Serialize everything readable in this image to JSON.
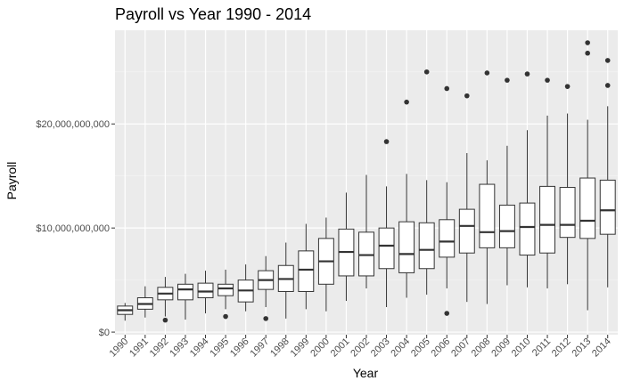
{
  "chart_data": {
    "type": "box",
    "title": "Payroll vs Year 1990 - 2014",
    "xlabel": "Year",
    "ylabel": "Payroll",
    "ylim": [
      -250000000,
      29000000000
    ],
    "y_ticks": [
      0,
      10000000000,
      20000000000
    ],
    "y_tick_labels": [
      "$0",
      "$10,000,000,000",
      "$20,000,000,000"
    ],
    "grid": true,
    "legend": "none",
    "colors": {
      "panel": "#ebebeb",
      "grid_major": "#ffffff",
      "grid_minor": "#f5f5f5",
      "box_fill": "#ffffff",
      "box_stroke": "#333333",
      "outlier": "#333333"
    },
    "categories": [
      "1990",
      "1991",
      "1992",
      "1993",
      "1994",
      "1995",
      "1996",
      "1997",
      "1998",
      "1999",
      "2000",
      "2001",
      "2002",
      "2003",
      "2004",
      "2005",
      "2006",
      "2007",
      "2008",
      "2009",
      "2010",
      "2011",
      "2012",
      "2013",
      "2014"
    ],
    "boxes": [
      {
        "min": 1100000000.0,
        "q1": 1700000000.0,
        "median": 2100000000.0,
        "q3": 2500000000.0,
        "max": 2800000000.0,
        "outliers": []
      },
      {
        "min": 1400000000.0,
        "q1": 2200000000.0,
        "median": 2700000000.0,
        "q3": 3300000000.0,
        "max": 4400000000.0,
        "outliers": []
      },
      {
        "min": 1500000000.0,
        "q1": 3100000000.0,
        "median": 3700000000.0,
        "q3": 4300000000.0,
        "max": 5300000000.0,
        "outliers": [
          1150000000.0
        ]
      },
      {
        "min": 1200000000.0,
        "q1": 3100000000.0,
        "median": 4100000000.0,
        "q3": 4600000000.0,
        "max": 5600000000.0,
        "outliers": []
      },
      {
        "min": 1800000000.0,
        "q1": 3300000000.0,
        "median": 3900000000.0,
        "q3": 4700000000.0,
        "max": 5900000000.0,
        "outliers": []
      },
      {
        "min": 2200000000.0,
        "q1": 3500000000.0,
        "median": 4200000000.0,
        "q3": 4600000000.0,
        "max": 6000000000.0,
        "outliers": [
          1500000000.0
        ]
      },
      {
        "min": 2000000000.0,
        "q1": 2900000000.0,
        "median": 4000000000.0,
        "q3": 5000000000.0,
        "max": 6500000000.0,
        "outliers": []
      },
      {
        "min": 2400000000.0,
        "q1": 4100000000.0,
        "median": 5000000000.0,
        "q3": 5900000000.0,
        "max": 7300000000.0,
        "outliers": [
          1300000000.0
        ]
      },
      {
        "min": 1300000000.0,
        "q1": 3900000000.0,
        "median": 5100000000.0,
        "q3": 6400000000.0,
        "max": 8600000000.0,
        "outliers": []
      },
      {
        "min": 2200000000.0,
        "q1": 3900000000.0,
        "median": 6000000000.0,
        "q3": 7800000000.0,
        "max": 10400000000.0,
        "outliers": []
      },
      {
        "min": 2000000000.0,
        "q1": 4600000000.0,
        "median": 6800000000.0,
        "q3": 9000000000.0,
        "max": 11000000000.0,
        "outliers": []
      },
      {
        "min": 3000000000.0,
        "q1": 5400000000.0,
        "median": 7700000000.0,
        "q3": 9900000000.0,
        "max": 13400000000.0,
        "outliers": []
      },
      {
        "min": 4200000000.0,
        "q1": 5400000000.0,
        "median": 7400000000.0,
        "q3": 9600000000.0,
        "max": 15100000000.0,
        "outliers": []
      },
      {
        "min": 2400000000.0,
        "q1": 6100000000.0,
        "median": 8300000000.0,
        "q3": 10000000000.0,
        "max": 14000000000.0,
        "outliers": [
          18300000000.0
        ]
      },
      {
        "min": 3300000000.0,
        "q1": 5700000000.0,
        "median": 7500000000.0,
        "q3": 10600000000.0,
        "max": 15200000000.0,
        "outliers": [
          22100000000.0
        ]
      },
      {
        "min": 3600000000.0,
        "q1": 6100000000.0,
        "median": 7900000000.0,
        "q3": 10500000000.0,
        "max": 14600000000.0,
        "outliers": [
          25000000000.0
        ]
      },
      {
        "min": 4200000000.0,
        "q1": 7200000000.0,
        "median": 8700000000.0,
        "q3": 10800000000.0,
        "max": 14400000000.0,
        "outliers": [
          23400000000.0,
          1800000000.0
        ]
      },
      {
        "min": 2900000000.0,
        "q1": 7600000000.0,
        "median": 10200000000.0,
        "q3": 11800000000.0,
        "max": 17200000000.0,
        "outliers": [
          22700000000.0
        ]
      },
      {
        "min": 2700000000.0,
        "q1": 8100000000.0,
        "median": 9600000000.0,
        "q3": 14200000000.0,
        "max": 16500000000.0,
        "outliers": [
          24900000000.0
        ]
      },
      {
        "min": 4500000000.0,
        "q1": 8100000000.0,
        "median": 9700000000.0,
        "q3": 12200000000.0,
        "max": 17900000000.0,
        "outliers": [
          24200000000.0
        ]
      },
      {
        "min": 4300000000.0,
        "q1": 7400000000.0,
        "median": 10100000000.0,
        "q3": 12400000000.0,
        "max": 19400000000.0,
        "outliers": [
          24800000000.0
        ]
      },
      {
        "min": 4200000000.0,
        "q1": 7600000000.0,
        "median": 10300000000.0,
        "q3": 14000000000.0,
        "max": 20800000000.0,
        "outliers": [
          24200000000.0
        ]
      },
      {
        "min": 4600000000.0,
        "q1": 9100000000.0,
        "median": 10300000000.0,
        "q3": 13900000000.0,
        "max": 21000000000.0,
        "outliers": [
          23600000000.0
        ]
      },
      {
        "min": 2100000000.0,
        "q1": 9000000000.0,
        "median": 10700000000.0,
        "q3": 14800000000.0,
        "max": 20400000000.0,
        "outliers": [
          27800000000.0,
          26800000000.0
        ]
      },
      {
        "min": 4300000000.0,
        "q1": 9400000000.0,
        "median": 11700000000.0,
        "q3": 14600000000.0,
        "max": 21700000000.0,
        "outliers": [
          26100000000.0,
          23700000000.0
        ]
      }
    ]
  }
}
